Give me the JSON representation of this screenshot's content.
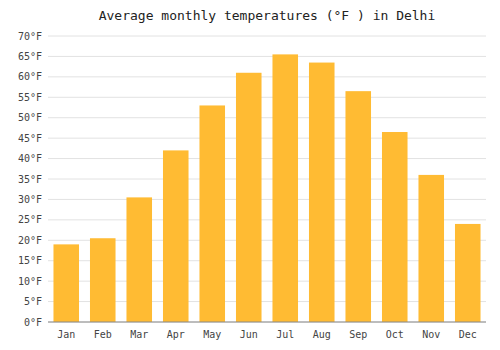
{
  "chart_data": {
    "type": "bar",
    "title": "Average monthly temperatures (°F ) in Delhi",
    "categories": [
      "Jan",
      "Feb",
      "Mar",
      "Apr",
      "May",
      "Jun",
      "Jul",
      "Aug",
      "Sep",
      "Oct",
      "Nov",
      "Dec"
    ],
    "values": [
      19,
      20.5,
      30.5,
      42,
      53,
      61,
      65.5,
      63.5,
      56.5,
      46.5,
      36,
      24
    ],
    "color": "#FFBB33",
    "ylim": [
      0,
      70
    ],
    "yticks": [
      {
        "value": 0,
        "label": "0°F"
      },
      {
        "value": 5,
        "label": "5°F"
      },
      {
        "value": 10,
        "label": "10°F"
      },
      {
        "value": 15,
        "label": "15°F"
      },
      {
        "value": 20,
        "label": "20°F"
      },
      {
        "value": 25,
        "label": "25°F"
      },
      {
        "value": 30,
        "label": "30°F"
      },
      {
        "value": 35,
        "label": "35°F"
      },
      {
        "value": 40,
        "label": "40°F"
      },
      {
        "value": 45,
        "label": "45°F"
      },
      {
        "value": 50,
        "label": "50°F"
      },
      {
        "value": 55,
        "label": "55°F"
      },
      {
        "value": 60,
        "label": "60°F"
      },
      {
        "value": 65,
        "label": "65°F"
      },
      {
        "value": 70,
        "label": "70°F"
      }
    ],
    "grid": true
  }
}
